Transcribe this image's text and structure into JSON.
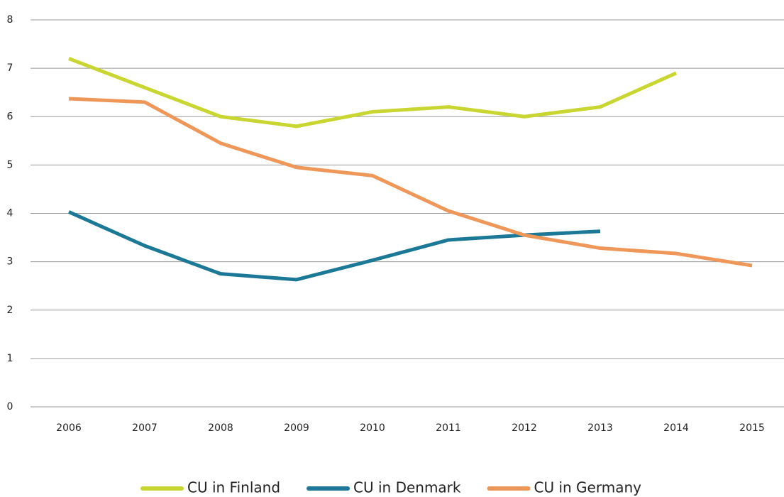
{
  "chart_data": {
    "type": "line",
    "categories": [
      "2006",
      "2007",
      "2008",
      "2009",
      "2010",
      "2011",
      "2012",
      "2013",
      "2014",
      "2015"
    ],
    "series": [
      {
        "name": "CU in Finland",
        "color": "#c9d631",
        "values": [
          7.2,
          6.6,
          6.0,
          5.8,
          6.1,
          6.2,
          6.0,
          6.2,
          6.9,
          null
        ]
      },
      {
        "name": "CU in Denmark",
        "color": "#1b7896",
        "values": [
          4.03,
          3.33,
          2.75,
          2.63,
          3.03,
          3.45,
          3.55,
          3.63,
          null,
          null
        ]
      },
      {
        "name": "CU in Germany",
        "color": "#ef9659",
        "values": [
          6.37,
          6.3,
          5.45,
          4.95,
          4.78,
          4.05,
          3.55,
          3.28,
          3.17,
          2.92
        ]
      }
    ],
    "ylim": [
      0,
      8
    ],
    "yticks": [
      0,
      1,
      2,
      3,
      4,
      5,
      6,
      7,
      8
    ],
    "grid": true,
    "legend": "bottom"
  }
}
